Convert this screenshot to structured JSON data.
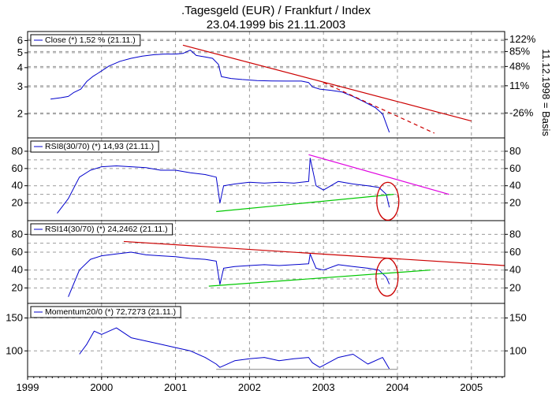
{
  "chart_data": {
    "type": "line",
    "title": ".Tagesgeld (EUR) / Frankfurt / Index",
    "subtitle": "23.04.1999 bis 21.11.2003",
    "x_ticks": [
      "1999",
      "2000",
      "2001",
      "2002",
      "2003",
      "2004",
      "2005"
    ],
    "x_range": [
      1999.0,
      2005.45
    ],
    "last_x": 2003.89,
    "panels": [
      {
        "id": "close",
        "legend": "Close (*) 1,52 % (21.11.)",
        "y_scale": "log",
        "ylim": [
          1.5,
          6.4
        ],
        "left_ticks": [
          {
            "value": 6,
            "label": "6"
          },
          {
            "value": 5,
            "label": "5"
          },
          {
            "value": 4,
            "label": "4"
          },
          {
            "value": 3,
            "label": "3"
          },
          {
            "value": 2,
            "label": "2"
          }
        ],
        "right_ticks": [
          {
            "value": 6.1,
            "label": "122%"
          },
          {
            "value": 5.09,
            "label": "85%"
          },
          {
            "value": 4.07,
            "label": "48%"
          },
          {
            "value": 3.05,
            "label": "11%"
          },
          {
            "value": 2.03,
            "label": "-26%"
          }
        ],
        "right_axis_label": "11.12.1998 = Basis",
        "series": [
          {
            "x": [
              1999.31,
              1999.45,
              1999.55,
              1999.62,
              1999.72,
              1999.8,
              1999.88,
              1999.96,
              2000.1,
              2000.25,
              2000.4,
              2000.55,
              2000.7,
              2000.85,
              2001.0,
              2001.1,
              2001.2,
              2001.28,
              2001.4,
              2001.5,
              2001.58,
              2001.62,
              2001.75,
              2001.9,
              2002.1,
              2002.3,
              2002.5,
              2002.7,
              2002.8,
              2002.85,
              2002.95,
              2003.1,
              2003.25,
              2003.4,
              2003.55,
              2003.7,
              2003.8,
              2003.89
            ],
            "y": [
              2.5,
              2.55,
              2.6,
              2.75,
              2.9,
              3.25,
              3.5,
              3.7,
              4.1,
              4.4,
              4.6,
              4.75,
              4.85,
              4.9,
              4.9,
              4.95,
              5.2,
              4.8,
              4.7,
              4.6,
              4.2,
              3.5,
              3.4,
              3.35,
              3.3,
              3.28,
              3.27,
              3.27,
              3.2,
              3.0,
              2.9,
              2.85,
              2.78,
              2.6,
              2.4,
              2.2,
              2.0,
              1.52
            ]
          }
        ],
        "trendlines": [
          {
            "x": [
              2001.1,
              2005.0
            ],
            "y": [
              5.6,
              1.8
            ],
            "color": "#cc0000",
            "dashed": false
          },
          {
            "x": [
              2003.0,
              2004.5
            ],
            "y": [
              3.2,
              1.5
            ],
            "color": "#cc0000",
            "dashed": true
          }
        ]
      },
      {
        "id": "rsi8",
        "legend": "RSI8(30/70) (*) 14,93 (21.11.)",
        "y_scale": "linear",
        "ylim": [
          5,
          90
        ],
        "left_ticks": [
          80,
          60,
          40,
          20
        ],
        "right_ticks": [
          80,
          60,
          40,
          20
        ],
        "dashed_lines": [
          70,
          30
        ],
        "series": [
          {
            "x": [
              1999.4,
              1999.55,
              1999.7,
              1999.85,
              2000.0,
              2000.2,
              2000.4,
              2000.6,
              2000.8,
              2001.0,
              2001.2,
              2001.4,
              2001.55,
              2001.6,
              2001.65,
              2001.8,
              2002.0,
              2002.2,
              2002.4,
              2002.6,
              2002.8,
              2002.82,
              2002.9,
              2003.0,
              2003.2,
              2003.4,
              2003.6,
              2003.75,
              2003.85,
              2003.89
            ],
            "y": [
              8,
              25,
              50,
              58,
              62,
              63,
              62,
              61,
              58,
              58,
              55,
              53,
              50,
              20,
              40,
              42,
              44,
              43,
              44,
              43,
              45,
              72,
              40,
              35,
              45,
              42,
              40,
              38,
              30,
              14.93
            ]
          }
        ],
        "trendlines": [
          {
            "x": [
              2001.55,
              2003.95
            ],
            "y": [
              10,
              30
            ],
            "color": "#00c800",
            "dashed": false
          },
          {
            "x": [
              2002.8,
              2004.7
            ],
            "y": [
              76,
              30
            ],
            "color": "#e000e0",
            "dashed": false
          }
        ]
      },
      {
        "id": "rsi14",
        "legend": "RSI14(30/70) (*) 24,2462 (21.11.)",
        "y_scale": "linear",
        "ylim": [
          8,
          90
        ],
        "left_ticks": [
          80,
          60,
          40,
          20
        ],
        "right_ticks": [
          80,
          60,
          40,
          20
        ],
        "dashed_lines": [
          70,
          30
        ],
        "series": [
          {
            "x": [
              1999.55,
              1999.7,
              1999.85,
              2000.0,
              2000.2,
              2000.4,
              2000.6,
              2000.8,
              2001.0,
              2001.2,
              2001.4,
              2001.55,
              2001.6,
              2001.65,
              2001.8,
              2002.0,
              2002.2,
              2002.4,
              2002.6,
              2002.8,
              2002.82,
              2002.9,
              2003.0,
              2003.2,
              2003.4,
              2003.6,
              2003.75,
              2003.85,
              2003.89
            ],
            "y": [
              10,
              40,
              52,
              56,
              58,
              60,
              57,
              56,
              55,
              53,
              52,
              50,
              24,
              42,
              44,
              45,
              46,
              45,
              46,
              47,
              58,
              42,
              40,
              46,
              44,
              42,
              40,
              32,
              24.2462
            ]
          }
        ],
        "trendlines": [
          {
            "x": [
              2000.3,
              2005.45
            ],
            "y": [
              72,
              45
            ],
            "color": "#cc0000",
            "dashed": false
          },
          {
            "x": [
              2001.45,
              2004.45
            ],
            "y": [
              22,
              40
            ],
            "color": "#00c800",
            "dashed": false
          }
        ]
      },
      {
        "id": "momentum",
        "legend": "Momentum20/0 (*) 72,7273 (21.11.)",
        "y_scale": "linear",
        "ylim": [
          68,
          165
        ],
        "left_ticks": [
          150,
          100
        ],
        "right_ticks": [
          150,
          100
        ],
        "series": [
          {
            "x": [
              1999.7,
              1999.8,
              1999.9,
              2000.0,
              2000.2,
              2000.4,
              2000.6,
              2000.8,
              2001.0,
              2001.2,
              2001.4,
              2001.55,
              2001.6,
              2001.8,
              2002.0,
              2002.2,
              2002.4,
              2002.6,
              2002.8,
              2002.85,
              2002.95,
              2003.2,
              2003.4,
              2003.6,
              2003.8,
              2003.89
            ],
            "y": [
              95,
              110,
              130,
              125,
              135,
              120,
              115,
              110,
              105,
              100,
              90,
              80,
              75,
              85,
              88,
              90,
              85,
              88,
              90,
              82,
              75,
              90,
              95,
              80,
              90,
              72.7273
            ]
          }
        ],
        "trendlines": [
          {
            "x": [
              2001.55,
              2004.0
            ],
            "y": [
              72,
              72
            ],
            "color": "#a0a0a0",
            "dashed": false
          }
        ]
      }
    ],
    "circles": [
      {
        "panel": "rsi8",
        "x": 2003.87,
        "y": 22
      },
      {
        "panel": "rsi14",
        "x": 2003.86,
        "y": 32
      }
    ],
    "colors": {
      "series": "#0000cc",
      "grid": "#9a9a9a",
      "frame": "#000000"
    }
  }
}
